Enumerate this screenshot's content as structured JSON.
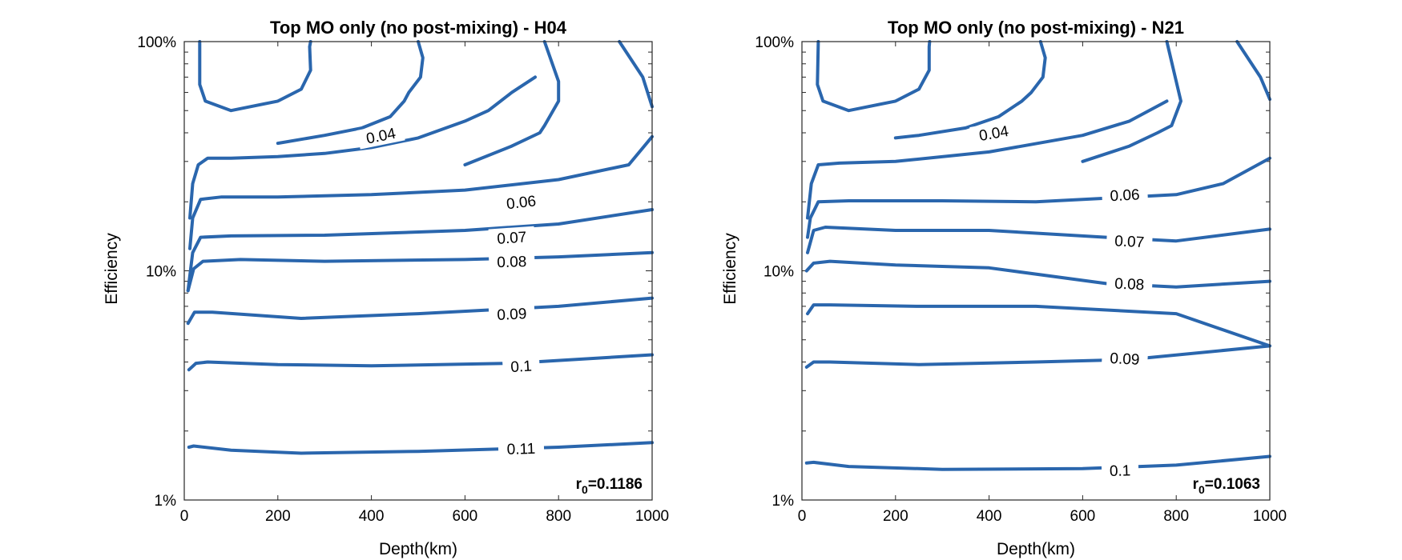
{
  "colors": {
    "contour": "#2a66ad",
    "axis": "#262626",
    "text": "#000000"
  },
  "chart_data": [
    {
      "type": "contour",
      "title": "Top MO only (no post-mixing) - H04",
      "xlabel": "Depth(km)",
      "ylabel": "Efficiency",
      "xlim": [
        0,
        1000
      ],
      "ylim": [
        1,
        100
      ],
      "yscale": "log",
      "xticks": [
        "0",
        "200",
        "400",
        "600",
        "800",
        "1000"
      ],
      "yticks": [
        "1%",
        "10%",
        "100%"
      ],
      "grid": false,
      "annotation": {
        "main": "r",
        "sub": "0",
        "value": "=0.1186"
      },
      "contours": [
        {
          "level": "",
          "label_at": null,
          "points": [
            [
              33,
              100
            ],
            [
              33,
              65
            ],
            [
              45,
              55
            ],
            [
              100,
              50
            ],
            [
              200,
              55
            ],
            [
              250,
              62
            ],
            [
              270,
              75
            ],
            [
              268,
              95
            ],
            [
              270,
              100
            ]
          ]
        },
        {
          "level": "",
          "label_at": null,
          "points": [
            [
              500,
              100
            ],
            [
              510,
              85
            ],
            [
              505,
              70
            ],
            [
              480,
              60
            ],
            [
              470,
              55
            ],
            [
              440,
              47
            ],
            [
              380,
              42
            ],
            [
              300,
              39
            ],
            [
              200,
              36
            ]
          ]
        },
        {
          "level": "",
          "label_at": null,
          "points": [
            [
              770,
              100
            ],
            [
              800,
              67
            ],
            [
              800,
              55
            ],
            [
              770,
              43
            ],
            [
              760,
              40
            ],
            [
              700,
              35
            ],
            [
              600,
              29
            ]
          ]
        },
        {
          "level": "",
          "label_at": null,
          "points": [
            [
              930,
              100
            ],
            [
              980,
              70
            ],
            [
              1000,
              52
            ]
          ]
        },
        {
          "level": "0.04",
          "label_at": [
            420,
            39
          ],
          "points": [
            [
              12,
              17
            ],
            [
              18,
              24
            ],
            [
              30,
              29
            ],
            [
              50,
              31
            ],
            [
              100,
              31
            ],
            [
              200,
              31.5
            ],
            [
              300,
              32.5
            ],
            [
              400,
              34.5
            ],
            [
              500,
              38
            ],
            [
              600,
              45
            ],
            [
              650,
              50
            ],
            [
              700,
              60
            ],
            [
              750,
              70
            ]
          ]
        },
        {
          "level": "0.06",
          "label_at": [
            720,
            20
          ],
          "points": [
            [
              12,
              12.5
            ],
            [
              18,
              17
            ],
            [
              35,
              20.5
            ],
            [
              80,
              21
            ],
            [
              200,
              21
            ],
            [
              400,
              21.5
            ],
            [
              600,
              22.5
            ],
            [
              800,
              25
            ],
            [
              950,
              29
            ],
            [
              1000,
              38.5
            ]
          ]
        },
        {
          "level": "0.07",
          "label_at": [
            700,
            14
          ],
          "points": [
            [
              8,
              8.2
            ],
            [
              18,
              12
            ],
            [
              35,
              14
            ],
            [
              100,
              14.2
            ],
            [
              300,
              14.3
            ],
            [
              600,
              15
            ],
            [
              800,
              16
            ],
            [
              1000,
              18.5
            ]
          ]
        },
        {
          "level": "0.08",
          "label_at": [
            700,
            11
          ],
          "points": [
            [
              8,
              8.2
            ],
            [
              20,
              10.2
            ],
            [
              40,
              11
            ],
            [
              120,
              11.2
            ],
            [
              300,
              11
            ],
            [
              600,
              11.2
            ],
            [
              800,
              11.5
            ],
            [
              1000,
              12
            ]
          ]
        },
        {
          "level": "0.09",
          "label_at": [
            700,
            6.5
          ],
          "points": [
            [
              8,
              5.9
            ],
            [
              22,
              6.6
            ],
            [
              60,
              6.6
            ],
            [
              250,
              6.2
            ],
            [
              500,
              6.5
            ],
            [
              800,
              7
            ],
            [
              1000,
              7.6
            ]
          ]
        },
        {
          "level": "0.1",
          "label_at": [
            720,
            3.85
          ],
          "points": [
            [
              10,
              3.7
            ],
            [
              25,
              3.95
            ],
            [
              50,
              4
            ],
            [
              200,
              3.9
            ],
            [
              400,
              3.85
            ],
            [
              700,
              3.95
            ],
            [
              1000,
              4.3
            ]
          ]
        },
        {
          "level": "0.11",
          "label_at": [
            720,
            1.68
          ],
          "points": [
            [
              10,
              1.7
            ],
            [
              20,
              1.72
            ],
            [
              100,
              1.65
            ],
            [
              250,
              1.6
            ],
            [
              500,
              1.63
            ],
            [
              800,
              1.7
            ],
            [
              1000,
              1.78
            ]
          ]
        }
      ]
    },
    {
      "type": "contour",
      "title": "Top MO only (no post-mixing) - N21",
      "xlabel": "Depth(km)",
      "ylabel": "Efficiency",
      "xlim": [
        0,
        1000
      ],
      "ylim": [
        1,
        100
      ],
      "yscale": "log",
      "xticks": [
        "0",
        "200",
        "400",
        "600",
        "800",
        "1000"
      ],
      "yticks": [
        "1%",
        "10%",
        "100%"
      ],
      "grid": false,
      "annotation": {
        "main": "r",
        "sub": "0",
        "value": "=0.1063"
      },
      "contours": [
        {
          "level": "",
          "label_at": null,
          "points": [
            [
              35,
              100
            ],
            [
              33,
              65
            ],
            [
              45,
              55
            ],
            [
              100,
              50
            ],
            [
              200,
              55
            ],
            [
              250,
              62
            ],
            [
              272,
              75
            ],
            [
              272,
              95
            ],
            [
              273,
              100
            ]
          ]
        },
        {
          "level": "",
          "label_at": null,
          "points": [
            [
              510,
              100
            ],
            [
              520,
              85
            ],
            [
              515,
              70
            ],
            [
              490,
              60
            ],
            [
              470,
              55
            ],
            [
              420,
              47
            ],
            [
              350,
              42
            ],
            [
              250,
              39
            ],
            [
              200,
              38
            ]
          ]
        },
        {
          "level": "",
          "label_at": null,
          "points": [
            [
              780,
              100
            ],
            [
              800,
              67
            ],
            [
              810,
              55
            ],
            [
              790,
              43
            ],
            [
              760,
              40
            ],
            [
              700,
              35
            ],
            [
              600,
              30
            ]
          ]
        },
        {
          "level": "",
          "label_at": null,
          "points": [
            [
              930,
              100
            ],
            [
              980,
              70
            ],
            [
              1000,
              56
            ]
          ]
        },
        {
          "level": "0.04",
          "label_at": [
            410,
            40
          ],
          "points": [
            [
              12,
              17
            ],
            [
              20,
              24
            ],
            [
              35,
              29
            ],
            [
              80,
              29.5
            ],
            [
              200,
              30
            ],
            [
              400,
              33
            ],
            [
              600,
              39
            ],
            [
              700,
              45
            ],
            [
              780,
              55
            ]
          ]
        },
        {
          "level": "0.06",
          "label_at": [
            690,
            21.5
          ],
          "points": [
            [
              12,
              14
            ],
            [
              18,
              17
            ],
            [
              35,
              20
            ],
            [
              100,
              20.2
            ],
            [
              300,
              20.2
            ],
            [
              500,
              20
            ],
            [
              800,
              21.5
            ],
            [
              900,
              24
            ],
            [
              1000,
              31
            ]
          ]
        },
        {
          "level": "0.07",
          "label_at": [
            700,
            13.5
          ],
          "points": [
            [
              12,
              12
            ],
            [
              25,
              15
            ],
            [
              50,
              15.5
            ],
            [
              200,
              15
            ],
            [
              400,
              15
            ],
            [
              650,
              14
            ],
            [
              800,
              13.5
            ],
            [
              1000,
              15.2
            ]
          ]
        },
        {
          "level": "0.08",
          "label_at": [
            700,
            8.8
          ],
          "points": [
            [
              10,
              10
            ],
            [
              25,
              10.8
            ],
            [
              60,
              11
            ],
            [
              200,
              10.6
            ],
            [
              400,
              10.3
            ],
            [
              650,
              8.8
            ],
            [
              800,
              8.5
            ],
            [
              1000,
              9
            ]
          ]
        },
        {
          "level": "0.09",
          "label_at": [
            690,
            4.15
          ],
          "points": [
            [
              12,
              6.5
            ],
            [
              25,
              7.1
            ],
            [
              60,
              7.1
            ],
            [
              250,
              7
            ],
            [
              500,
              7
            ],
            [
              800,
              6.5
            ],
            [
              1000,
              4.7
            ]
          ]
        },
        {
          "level": "0.1",
          "label_at": [
            680,
            1.35
          ],
          "points": [
            [
              10,
              3.8
            ],
            [
              25,
              4
            ],
            [
              60,
              4
            ],
            [
              250,
              3.9
            ],
            [
              500,
              4
            ],
            [
              700,
              4.1
            ],
            [
              1000,
              4.7
            ]
          ]
        },
        {
          "level": "",
          "label_at": null,
          "points": [
            [
              10,
              1.45
            ],
            [
              25,
              1.46
            ],
            [
              100,
              1.4
            ],
            [
              300,
              1.36
            ],
            [
              600,
              1.37
            ],
            [
              800,
              1.42
            ],
            [
              1000,
              1.55
            ]
          ]
        }
      ]
    }
  ]
}
